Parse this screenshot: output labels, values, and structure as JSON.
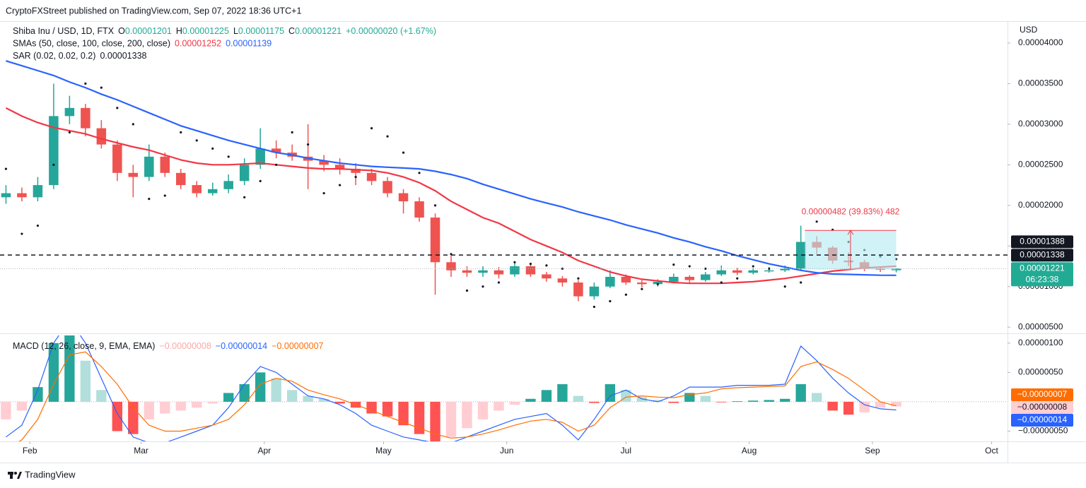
{
  "page": {
    "published": "CryptoFXStreet published on TradingView.com, Sep 07, 2022 18:36 UTC+1",
    "currency": "USD",
    "brand": "TradingView"
  },
  "chart_data": [
    {
      "type": "candlestick",
      "legend": [
        [
          {
            "text": "Shiba Inu / USD, 1D, FTX",
            "color": "#131722"
          },
          {
            "text": "O",
            "color": "#131722"
          },
          {
            "text": "0.00001201",
            "color": "#22ab94"
          },
          {
            "text": "H",
            "color": "#131722"
          },
          {
            "text": "0.00001225",
            "color": "#22ab94"
          },
          {
            "text": "L",
            "color": "#131722"
          },
          {
            "text": "0.00001175",
            "color": "#22ab94"
          },
          {
            "text": "C",
            "color": "#131722"
          },
          {
            "text": "0.00001221",
            "color": "#22ab94"
          },
          {
            "text": "+0.00000020 (+1.67%)",
            "color": "#22ab94"
          }
        ],
        [
          {
            "text": "SMAs (50, close, 100, close, 200, close)",
            "color": "#131722"
          },
          {
            "text": "0.00001252",
            "color": "#f23645"
          },
          {
            "text": "0.00001139",
            "color": "#2962ff"
          }
        ],
        [
          {
            "text": "SAR (0.02, 0.02, 0.2)",
            "color": "#131722"
          },
          {
            "text": "0.00001338",
            "color": "#131722"
          }
        ]
      ],
      "x": [
        26,
        30,
        34,
        38,
        42,
        46,
        50,
        54,
        58,
        62,
        66,
        70,
        74,
        78,
        82,
        86,
        90,
        94,
        98,
        102,
        106,
        110,
        114,
        118,
        122,
        126,
        130,
        134,
        138,
        142,
        146,
        150,
        154,
        158,
        162,
        166,
        170,
        174,
        178,
        182,
        186,
        190,
        194,
        198,
        202,
        206,
        210,
        214,
        218,
        222,
        226,
        230,
        234,
        238,
        242,
        246,
        250
      ],
      "open": [
        2.1e-05,
        2.15e-05,
        2.1e-05,
        2.25e-05,
        3.1e-05,
        3.2e-05,
        2.95e-05,
        2.75e-05,
        2.4e-05,
        2.35e-05,
        2.6e-05,
        2.4e-05,
        2.25e-05,
        2.15e-05,
        2.2e-05,
        2.3e-05,
        2.5e-05,
        2.7e-05,
        2.65e-05,
        2.6e-05,
        2.55e-05,
        2.5e-05,
        2.45e-05,
        2.4e-05,
        2.3e-05,
        2.15e-05,
        2.05e-05,
        1.85e-05,
        1.3e-05,
        1.2e-05,
        1.17e-05,
        1.2e-05,
        1.15e-05,
        1.25e-05,
        1.15e-05,
        1.1e-05,
        1.05e-05,
        8.8e-06,
        1e-05,
        1.12e-05,
        1.05e-05,
        1.03e-05,
        1.06e-05,
        1.12e-05,
        1.08e-05,
        1.15e-05,
        1.2e-05,
        1.17e-05,
        1.2e-05,
        1.2e-05,
        1.22e-05,
        1.55e-05,
        1.48e-05,
        1.32e-05,
        1.3e-05,
        1.22e-05,
        1.201e-05
      ],
      "high": [
        2.25e-05,
        2.22e-05,
        2.35e-05,
        3.5e-05,
        3.35e-05,
        3.25e-05,
        3.05e-05,
        2.8e-05,
        2.5e-05,
        2.75e-05,
        2.65e-05,
        2.45e-05,
        2.3e-05,
        2.28e-05,
        2.38e-05,
        2.58e-05,
        2.95e-05,
        2.8e-05,
        2.75e-05,
        3e-05,
        2.62e-05,
        2.58e-05,
        2.52e-05,
        2.45e-05,
        2.35e-05,
        2.2e-05,
        2.1e-05,
        1.9e-05,
        1.38e-05,
        1.25e-05,
        1.25e-05,
        1.24e-05,
        1.3e-05,
        1.27e-05,
        1.18e-05,
        1.13e-05,
        1.08e-05,
        1.05e-05,
        1.2e-05,
        1.15e-05,
        1.08e-05,
        1.09e-05,
        1.16e-05,
        1.14e-05,
        1.18e-05,
        1.26e-05,
        1.23e-05,
        1.23e-05,
        1.24e-05,
        1.26e-05,
        1.75e-05,
        1.62e-05,
        1.5e-05,
        1.42e-05,
        1.33e-05,
        1.25e-05,
        1.225e-05
      ],
      "low": [
        2.02e-05,
        2.05e-05,
        2.05e-05,
        2.2e-05,
        3e-05,
        2.85e-05,
        2.7e-05,
        2.3e-05,
        2.1e-05,
        2.3e-05,
        2.35e-05,
        2.2e-05,
        2.1e-05,
        2.12e-05,
        2.15e-05,
        2.25e-05,
        2.45e-05,
        2.58e-05,
        2.55e-05,
        2.2e-05,
        2.42e-05,
        2.38e-05,
        2.25e-05,
        2.25e-05,
        2.1e-05,
        1.9e-05,
        1.8e-05,
        9e-06,
        1.12e-05,
        1.12e-05,
        1.12e-05,
        1.1e-05,
        1.12e-05,
        1.12e-05,
        1.06e-05,
        1e-05,
        8.2e-06,
        8.4e-06,
        9.8e-06,
        1.02e-05,
        9.9e-06,
        1e-05,
        1.04e-05,
        1.04e-05,
        1.06e-05,
        1.13e-05,
        1.14e-05,
        1.15e-05,
        1.17e-05,
        1.18e-05,
        1.2e-05,
        1.4e-05,
        1.28e-05,
        1.25e-05,
        1.19e-05,
        1.18e-05,
        1.175e-05
      ],
      "close": [
        2.15e-05,
        2.1e-05,
        2.25e-05,
        3.1e-05,
        3.2e-05,
        2.95e-05,
        2.75e-05,
        2.4e-05,
        2.35e-05,
        2.6e-05,
        2.4e-05,
        2.25e-05,
        2.15e-05,
        2.2e-05,
        2.3e-05,
        2.5e-05,
        2.7e-05,
        2.65e-05,
        2.6e-05,
        2.55e-05,
        2.5e-05,
        2.45e-05,
        2.4e-05,
        2.3e-05,
        2.15e-05,
        2.05e-05,
        1.85e-05,
        1.3e-05,
        1.2e-05,
        1.17e-05,
        1.2e-05,
        1.15e-05,
        1.25e-05,
        1.15e-05,
        1.1e-05,
        1.05e-05,
        8.8e-06,
        1e-05,
        1.12e-05,
        1.05e-05,
        1.03e-05,
        1.06e-05,
        1.12e-05,
        1.08e-05,
        1.15e-05,
        1.2e-05,
        1.17e-05,
        1.2e-05,
        1.2e-05,
        1.22e-05,
        1.55e-05,
        1.48e-05,
        1.32e-05,
        1.3e-05,
        1.22e-05,
        1.21e-05,
        1.221e-05
      ],
      "up_color": "#26a69a",
      "down_color": "#ef5350",
      "series": [
        {
          "style": "line",
          "color": "#f23645",
          "values": [
            3.2e-05,
            3.1e-05,
            3.02e-05,
            2.96e-05,
            2.92e-05,
            2.88e-05,
            2.82e-05,
            2.77e-05,
            2.72e-05,
            2.68e-05,
            2.62e-05,
            2.56e-05,
            2.52e-05,
            2.5e-05,
            2.5e-05,
            2.51e-05,
            2.52e-05,
            2.5e-05,
            2.48e-05,
            2.46e-05,
            2.45e-05,
            2.45e-05,
            2.44e-05,
            2.43e-05,
            2.4e-05,
            2.35e-05,
            2.28e-05,
            2.18e-05,
            2.05e-05,
            1.95e-05,
            1.85e-05,
            1.78e-05,
            1.68e-05,
            1.58e-05,
            1.5e-05,
            1.42e-05,
            1.32e-05,
            1.25e-05,
            1.18e-05,
            1.13e-05,
            1.09e-05,
            1.07e-05,
            1.05e-05,
            1.04e-05,
            1.04e-05,
            1.04e-05,
            1.05e-05,
            1.06e-05,
            1.08e-05,
            1.1e-05,
            1.13e-05,
            1.16e-05,
            1.19e-05,
            1.21e-05,
            1.23e-05,
            1.24e-05,
            1.252e-05
          ]
        },
        {
          "style": "line",
          "color": "#2962ff",
          "values": [
            3.78e-05,
            3.72e-05,
            3.66e-05,
            3.6e-05,
            3.52e-05,
            3.45e-05,
            3.37e-05,
            3.3e-05,
            3.22e-05,
            3.14e-05,
            3.06e-05,
            2.98e-05,
            2.92e-05,
            2.86e-05,
            2.8e-05,
            2.75e-05,
            2.7e-05,
            2.65e-05,
            2.62e-05,
            2.58e-05,
            2.55e-05,
            2.52e-05,
            2.5e-05,
            2.48e-05,
            2.47e-05,
            2.46e-05,
            2.45e-05,
            2.42e-05,
            2.38e-05,
            2.33e-05,
            2.26e-05,
            2.2e-05,
            2.14e-05,
            2.08e-05,
            2.03e-05,
            1.98e-05,
            1.92e-05,
            1.87e-05,
            1.82e-05,
            1.76e-05,
            1.71e-05,
            1.66e-05,
            1.6e-05,
            1.55e-05,
            1.49e-05,
            1.44e-05,
            1.38e-05,
            1.33e-05,
            1.28e-05,
            1.24e-05,
            1.2e-05,
            1.17e-05,
            1.155e-05,
            1.15e-05,
            1.145e-05,
            1.14e-05,
            1.139e-05
          ]
        },
        {
          "style": "dots",
          "color": "#131722",
          "values": [
            2.45e-05,
            1.65e-05,
            1.75e-05,
            2.5e-05,
            2.9e-05,
            3.5e-05,
            3.45e-05,
            3.2e-05,
            3e-05,
            2.08e-05,
            2.12e-05,
            2.9e-05,
            2.8e-05,
            2.7e-05,
            2.6e-05,
            2.1e-05,
            2.3e-05,
            2.5e-05,
            2.9e-05,
            2.75e-05,
            2.15e-05,
            2.25e-05,
            2.35e-05,
            2.95e-05,
            2.85e-05,
            2.65e-05,
            2.4e-05,
            2e-05,
            1.4e-05,
            9.5e-06,
            1e-05,
            1.05e-05,
            1.3e-05,
            1.28e-05,
            1.26e-05,
            1.22e-05,
            1.1e-05,
            7.5e-06,
            8.2e-06,
            9e-06,
            9.7e-06,
            1.03e-05,
            1.27e-05,
            1.25e-05,
            1.22e-05,
            1.05e-05,
            1.1e-05,
            1.25e-05,
            1.22e-05,
            1e-05,
            1.05e-05,
            1.8e-05,
            1.7e-05,
            1.55e-05,
            1.45e-05,
            1.37e-05,
            1.338e-05
          ]
        }
      ],
      "measure": {
        "label": "0.00000482 (39.83%) 482",
        "x": [
          227,
          250
        ],
        "y": [
          1.21e-05,
          1.692e-05
        ],
        "color": "#f23645",
        "fill": "#b2ebf2"
      },
      "badges": [
        {
          "value": 1.388e-05,
          "label": "0.00001388",
          "color": "#131722",
          "text_color": "#ffffff",
          "line": "dashed"
        },
        {
          "value": 1.338e-05,
          "label": "0.00001338",
          "color": "#131722",
          "text_color": "#ffffff"
        },
        {
          "value": 1.221e-05,
          "label": "0.00001221",
          "countdown": "06:23:38",
          "color": "#22ab94",
          "text_color": "#ffffff",
          "line": "dotted"
        }
      ],
      "xlim": [
        24.5,
        278
      ],
      "xticks": [
        {
          "value": 32,
          "label": "Feb"
        },
        {
          "value": 60,
          "label": "Mar"
        },
        {
          "value": 91,
          "label": "Apr"
        },
        {
          "value": 121,
          "label": "May"
        },
        {
          "value": 152,
          "label": "Jun"
        },
        {
          "value": 182,
          "label": "Jul"
        },
        {
          "value": 213,
          "label": "Aug"
        },
        {
          "value": 244,
          "label": "Sep"
        },
        {
          "value": 274,
          "label": "Oct"
        }
      ],
      "ylim": [
        4.24e-06,
        4.26e-05
      ],
      "yticks": [
        {
          "value": 5e-06,
          "label": "0.00000500"
        },
        {
          "value": 1e-05,
          "label": "0.00001000"
        },
        {
          "value": 1.5e-05,
          "label": "0.00001500"
        },
        {
          "value": 2e-05,
          "label": "0.00002000"
        },
        {
          "value": 2.5e-05,
          "label": "0.00002500"
        },
        {
          "value": 3e-05,
          "label": "0.00003000"
        },
        {
          "value": 3.5e-05,
          "label": "0.00003500"
        },
        {
          "value": 4e-05,
          "label": "0.00004000"
        }
      ]
    },
    {
      "type": "bar",
      "legend": [
        [
          {
            "text": "MACD (12, 26, close, 9, EMA, EMA)",
            "color": "#131722"
          },
          {
            "text": "−0.00000008",
            "color": "#f7a9a7"
          },
          {
            "text": "−0.00000014",
            "color": "#2962ff"
          },
          {
            "text": "−0.00000007",
            "color": "#ff6d00"
          }
        ]
      ],
      "x": [
        26,
        30,
        34,
        38,
        42,
        46,
        50,
        54,
        58,
        62,
        66,
        70,
        74,
        78,
        82,
        86,
        90,
        94,
        98,
        102,
        106,
        110,
        114,
        118,
        122,
        126,
        130,
        134,
        138,
        142,
        146,
        150,
        154,
        158,
        162,
        166,
        170,
        174,
        178,
        182,
        186,
        190,
        194,
        198,
        202,
        206,
        210,
        214,
        218,
        222,
        226,
        230,
        234,
        238,
        242,
        246,
        250
      ],
      "values": [
        -3e-07,
        -1.5e-07,
        2.5e-07,
        1e-06,
        1.2e-06,
        7e-07,
        2e-07,
        -5e-07,
        -5.5e-07,
        -3e-07,
        -2e-07,
        -1.5e-07,
        -1e-07,
        -3e-08,
        1.5e-07,
        3e-07,
        5e-07,
        4e-07,
        2e-07,
        1e-07,
        5e-08,
        -3e-08,
        -1e-07,
        -2e-07,
        -2.5e-07,
        -4e-07,
        -5.5e-07,
        -7.5e-07,
        -6e-07,
        -4.5e-07,
        -3e-07,
        -1.5e-07,
        -5e-08,
        5e-08,
        2e-07,
        3e-07,
        1e-07,
        -2e-08,
        3e-07,
        2e-07,
        8e-08,
        3e-08,
        -2e-08,
        1.5e-07,
        1e-07,
        -1e-08,
        1e-08,
        2e-08,
        3e-08,
        5e-08,
        3e-07,
        1.5e-07,
        -1.5e-07,
        -2.2e-07,
        -1.8e-07,
        -1e-07,
        -8e-08
      ],
      "colors": [
        "#26a69a",
        "#b2dfdb",
        "#ffcdd2",
        "#ff5252"
      ],
      "series": [
        {
          "style": "line",
          "color": "#2962ff",
          "values": [
            -6e-07,
            -4e-07,
            2e-07,
            1e-06,
            1.4e-06,
            1e-06,
            4e-07,
            -2e-07,
            -6e-07,
            -7e-07,
            -7e-07,
            -6e-07,
            -5e-07,
            -4e-07,
            -1e-07,
            3e-07,
            6e-07,
            5e-07,
            3e-07,
            1e-07,
            5e-08,
            -5e-08,
            -2e-07,
            -4e-07,
            -5e-07,
            -6e-07,
            -6.5e-07,
            -7e-07,
            -7e-07,
            -6e-07,
            -5e-07,
            -4e-07,
            -3e-07,
            -2.5e-07,
            -2e-07,
            -4e-07,
            -6.5e-07,
            -3e-07,
            1e-07,
            2e-07,
            5e-08,
            0,
            1e-07,
            2.5e-07,
            2.5e-07,
            2.5e-07,
            2.8e-07,
            2.8e-07,
            2.8e-07,
            3e-07,
            9.5e-07,
            7e-07,
            4e-07,
            1.5e-07,
            -5e-08,
            -1.2e-07,
            -1.4e-07
          ]
        },
        {
          "style": "line",
          "color": "#ff6d00",
          "values": [
            -8e-07,
            -6.5e-07,
            -3e-07,
            3e-07,
            8e-07,
            8.5e-07,
            6e-07,
            3e-07,
            -1e-07,
            -4e-07,
            -5e-07,
            -5e-07,
            -4.5e-07,
            -4e-07,
            -3e-07,
            -5e-08,
            3e-07,
            4e-07,
            3.5e-07,
            2e-07,
            1.2e-07,
            5e-08,
            -5e-08,
            -1.5e-07,
            -2.5e-07,
            -3.5e-07,
            -4.5e-07,
            -5.5e-07,
            -6.2e-07,
            -6e-07,
            -5.5e-07,
            -4.8e-07,
            -4e-07,
            -3.3e-07,
            -3e-07,
            -3.5e-07,
            -5e-07,
            -4e-07,
            -1e-07,
            8e-08,
            1e-07,
            8e-08,
            7e-08,
            1.2e-07,
            1.5e-07,
            2.2e-07,
            2.4e-07,
            2.5e-07,
            2.6e-07,
            2.7e-07,
            6e-07,
            6.8e-07,
            5.5e-07,
            4e-07,
            2e-07,
            0,
            -7e-08
          ]
        }
      ],
      "badges": [
        {
          "value": -7e-08,
          "label": "−0.00000007",
          "color": "#ff6d00",
          "text_color": "#ffffff"
        },
        {
          "value": -8e-08,
          "label": "−0.00000008",
          "color": "#ffcdd2",
          "text_color": "#131722"
        },
        {
          "value": -1.4e-07,
          "label": "−0.00000014",
          "color": "#2962ff",
          "text_color": "#ffffff"
        }
      ],
      "xlim": [
        24.5,
        278
      ],
      "ylim": [
        -6.75e-07,
        1.13e-06
      ],
      "yticks": [
        {
          "value": -5e-07,
          "label": "−0.00000050"
        },
        {
          "value": 5e-07,
          "label": "0.00000050"
        },
        {
          "value": 1e-06,
          "label": "0.00000100"
        }
      ]
    }
  ]
}
